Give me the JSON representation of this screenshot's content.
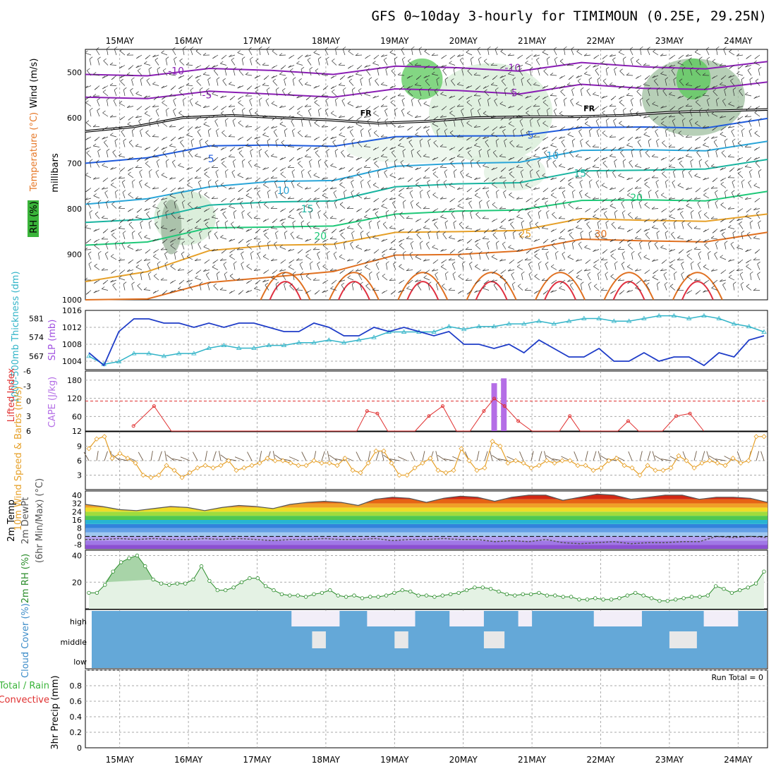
{
  "title": "GFS 0~10day 3-hourly for TIMIMOUN (0.25E, 29.25N)",
  "run_total_label": "Run Total = 0",
  "freezing_label": "FR",
  "chart_data": [
    {
      "type": "heatmap",
      "panel": "upper-air",
      "x": [
        "15MAY",
        "16MAY",
        "17MAY",
        "18MAY",
        "19MAY",
        "20MAY",
        "21MAY",
        "22MAY",
        "23MAY",
        "24MAY"
      ],
      "ylabel": "millibars",
      "ylim": [
        1000,
        450
      ],
      "yticks": [
        "500",
        "600",
        "700",
        "800",
        "900",
        "1000"
      ],
      "left_labels": [
        "Wind (m/s)",
        "Temperature (°C)",
        "RH (%)"
      ],
      "temperature_contours": [
        {
          "value": "-10",
          "color": "#8a1eb4",
          "pressure": [
            505,
            500,
            500,
            496,
            497,
            495,
            490,
            490,
            487,
            488,
            485,
            485
          ]
        },
        {
          "value": "-5",
          "color": "#8a1eb4",
          "pressure": [
            555,
            550,
            550,
            548,
            547,
            545,
            540,
            540,
            535,
            535,
            530,
            530
          ]
        },
        {
          "value": "5",
          "color": "#1e5adc",
          "pressure": [
            700,
            680,
            670,
            660,
            655,
            650,
            640,
            632,
            630,
            620,
            615,
            610
          ]
        },
        {
          "value": "10",
          "color": "#2aa5d8",
          "pressure": [
            790,
            770,
            760,
            740,
            730,
            715,
            700,
            690,
            680,
            670,
            665,
            660
          ]
        },
        {
          "value": "15",
          "color": "#19b4a0",
          "pressure": [
            830,
            815,
            800,
            785,
            775,
            760,
            745,
            735,
            725,
            715,
            705,
            700
          ]
        },
        {
          "value": "20",
          "color": "#1ec878",
          "pressure": [
            880,
            865,
            850,
            840,
            830,
            820,
            805,
            795,
            790,
            780,
            775,
            770
          ]
        },
        {
          "value": "25",
          "color": "#e6a028",
          "pressure": [
            960,
            930,
            900,
            880,
            870,
            860,
            850,
            840,
            830,
            825,
            820,
            820
          ]
        },
        {
          "value": "30",
          "color": "#e07020",
          "pressure": [
            1000,
            990,
            970,
            950,
            930,
            910,
            900,
            885,
            875,
            870,
            865,
            860
          ]
        }
      ],
      "contour_labels": [
        {
          "text": "-10",
          "x": 0.82,
          "p": 497
        },
        {
          "text": "-10",
          "x": 5.72,
          "p": 490
        },
        {
          "text": "-5",
          "x": 1.27,
          "p": 550
        },
        {
          "text": "-5",
          "x": 5.72,
          "p": 545
        },
        {
          "text": "5",
          "x": 1.33,
          "p": 690
        },
        {
          "text": "5",
          "x": 5.98,
          "p": 638
        },
        {
          "text": "10",
          "x": 2.38,
          "p": 760
        },
        {
          "text": "10",
          "x": 6.3,
          "p": 683
        },
        {
          "text": "15",
          "x": 2.73,
          "p": 800
        },
        {
          "text": "15",
          "x": 6.7,
          "p": 722
        },
        {
          "text": "20",
          "x": 2.92,
          "p": 860
        },
        {
          "text": "20",
          "x": 7.52,
          "p": 775
        },
        {
          "text": "25",
          "x": 5.9,
          "p": 855
        },
        {
          "text": "30",
          "x": 7.0,
          "p": 855
        }
      ],
      "freezing_level": [
        630,
        620,
        600,
        595,
        600,
        605,
        612,
        608,
        600,
        598,
        598,
        595,
        588,
        585,
        582
      ]
    },
    {
      "type": "line",
      "panel": "slp-thickness",
      "left_labels": [
        "SLP (mb)",
        "1000-500mb Thickness (dm)"
      ],
      "slp_ticks": [
        "1004",
        "1008",
        "1012",
        "1016"
      ],
      "thk_ticks": [
        "567",
        "574",
        "581"
      ],
      "series": [
        {
          "name": "SLP",
          "color": "#1e3cc8",
          "values": [
            1006,
            1003,
            1011,
            1014,
            1014,
            1013,
            1013,
            1012,
            1013,
            1012,
            1013,
            1013,
            1012,
            1011,
            1011,
            1013,
            1012,
            1010,
            1010,
            1012,
            1011,
            1012,
            1011,
            1010,
            1011,
            1008,
            1008,
            1007,
            1008,
            1006,
            1009,
            1007,
            1005,
            1005,
            1007,
            1004,
            1004,
            1006,
            1004,
            1005,
            1005,
            1003,
            1006,
            1005,
            1009,
            1010
          ]
        },
        {
          "name": "Thickness",
          "color": "#32b4c8",
          "values": [
            567,
            564,
            565,
            568,
            568,
            567,
            568,
            568,
            570,
            571,
            570,
            570,
            571,
            571,
            572,
            572,
            573,
            572,
            573,
            574,
            576,
            576,
            576,
            576,
            578,
            577,
            578,
            578,
            579,
            579,
            580,
            579,
            580,
            581,
            581,
            580,
            580,
            581,
            582,
            582,
            581,
            582,
            581,
            579,
            578,
            576
          ]
        }
      ]
    },
    {
      "type": "bar",
      "panel": "cape-li",
      "left_labels": [
        "CAPE (J/kg)",
        "Lifted Index"
      ],
      "cape_ticks": [
        "12",
        "60",
        "120",
        "180"
      ],
      "li_ticks": [
        "6",
        "3",
        "0",
        "-3",
        "-6"
      ],
      "cape_bars": [
        {
          "x": 5.45,
          "value": 170
        },
        {
          "x": 5.59,
          "value": 186
        }
      ],
      "lifted_index": [
        5,
        -2,
        5,
        6,
        6,
        6,
        6,
        6,
        6,
        6,
        6,
        6,
        6,
        6,
        6,
        6,
        6,
        6,
        6,
        6,
        6,
        6,
        6,
        6,
        6,
        6,
        6,
        6,
        6,
        6,
        6,
        6,
        6,
        6,
        6,
        6,
        6,
        6,
        6,
        6,
        6,
        6,
        6,
        6,
        6,
        6,
        6,
        6,
        6,
        6,
        6,
        6,
        6,
        6,
        6,
        6,
        6,
        6,
        6,
        6,
        6,
        6,
        6,
        6,
        6,
        6,
        6,
        6,
        6,
        6,
        6,
        6,
        6,
        6,
        6,
        6,
        6,
        6,
        6
      ],
      "li_line": [
        [
          0.2,
          5
        ],
        [
          0.5,
          1
        ],
        [
          0.75,
          6
        ],
        [
          3.45,
          6
        ],
        [
          3.6,
          2
        ],
        [
          3.75,
          2.5
        ],
        [
          3.9,
          6
        ],
        [
          4.3,
          6
        ],
        [
          4.5,
          3
        ],
        [
          4.7,
          1
        ],
        [
          4.9,
          6
        ],
        [
          5.1,
          6
        ],
        [
          5.3,
          2
        ],
        [
          5.45,
          -0.5
        ],
        [
          5.6,
          1
        ],
        [
          5.8,
          4
        ],
        [
          6.0,
          6
        ],
        [
          6.4,
          6
        ],
        [
          6.55,
          3
        ],
        [
          6.7,
          6
        ],
        [
          7.25,
          6
        ],
        [
          7.4,
          4
        ],
        [
          7.55,
          6
        ],
        [
          7.9,
          6
        ],
        [
          8.1,
          3
        ],
        [
          8.3,
          2.5
        ],
        [
          8.5,
          6
        ]
      ]
    },
    {
      "type": "line",
      "panel": "10m-wind",
      "left_labels": [
        "10m Wind Speed & Barbs (m/s)"
      ],
      "yticks": [
        "3",
        "6",
        "9"
      ],
      "ylim": [
        0,
        12
      ],
      "series": [
        {
          "name": "Speed",
          "color": "#e6a028",
          "values": [
            8.5,
            10.5,
            11,
            6.5,
            7.5,
            6.5,
            5.5,
            3,
            2.5,
            3,
            5,
            4,
            2.5,
            3.5,
            4.5,
            5,
            4.5,
            5,
            6,
            4,
            4.5,
            5,
            5.5,
            6.5,
            6,
            6,
            5.5,
            5,
            5,
            6,
            5.5,
            5.5,
            5,
            6.5,
            4,
            3.5,
            5.5,
            8,
            8,
            5.5,
            3,
            3,
            4.5,
            5.5,
            6.5,
            4,
            3.5,
            4,
            8.5,
            6,
            4,
            4.5,
            10,
            9,
            5.5,
            6,
            5.5,
            4.5,
            5,
            6,
            5.5,
            6,
            6,
            5,
            5,
            4,
            4.5,
            6,
            6.5,
            5,
            4.5,
            3,
            5,
            4,
            4,
            4.5,
            7,
            6,
            4.5,
            5.5,
            6,
            5.5,
            5,
            6.5,
            5.5,
            6,
            11,
            11
          ]
        }
      ]
    },
    {
      "type": "area",
      "panel": "2m-temp",
      "left_labels": [
        "2m Temp",
        "2m DewPt",
        "(6hr Min/Max) (°C)"
      ],
      "yticks": [
        "-8",
        "0",
        "8",
        "16",
        "24",
        "32",
        "40"
      ],
      "ylim": [
        -12,
        44
      ],
      "temperature": [
        31,
        29,
        26,
        25,
        27,
        29,
        28,
        25,
        28,
        30,
        29,
        27,
        31,
        33,
        34,
        33,
        30,
        36,
        38,
        37,
        33,
        37,
        39,
        38,
        34,
        38,
        40,
        40,
        35,
        38,
        41,
        40,
        36,
        38,
        40,
        40,
        36,
        38,
        38,
        37,
        33
      ],
      "dewpoint": [
        -3,
        -3,
        -2,
        -3,
        -2,
        -3,
        -3,
        -2,
        -3,
        -2,
        -3,
        -4,
        -3,
        -3,
        -2,
        -3,
        -3,
        -2,
        -4,
        -3,
        -3,
        -2,
        -3,
        -3,
        -5,
        -4,
        -5,
        -3,
        -6,
        -7,
        -6,
        -5,
        -7,
        -6,
        -6,
        -5,
        -5,
        0,
        -1,
        0,
        -1
      ]
    },
    {
      "type": "area",
      "panel": "2m-rh",
      "left_labels": [
        "2m RH (%)"
      ],
      "yticks": [
        "20",
        "40"
      ],
      "ylim": [
        0,
        44
      ],
      "values": [
        12,
        12,
        18,
        28,
        35,
        38,
        40,
        32,
        22,
        19,
        18,
        19,
        19,
        22,
        32,
        21,
        14,
        14,
        16,
        20,
        23,
        23,
        17,
        14,
        11,
        10,
        10,
        9,
        11,
        12,
        14,
        10,
        9,
        10,
        8,
        9,
        9,
        10,
        12,
        14,
        13,
        10,
        10,
        9,
        10,
        11,
        12,
        14,
        16,
        16,
        15,
        13,
        11,
        10,
        11,
        11,
        12,
        10,
        10,
        9,
        9,
        7,
        7,
        8,
        7,
        7,
        8,
        10,
        12,
        10,
        8,
        6,
        6,
        7,
        8,
        9,
        9,
        10,
        17,
        15,
        12,
        14,
        16,
        19,
        28
      ]
    },
    {
      "type": "heatmap",
      "panel": "cloud-cover",
      "left_labels": [
        "Cloud Cover (%)"
      ],
      "rows": [
        "high",
        "middle",
        "low"
      ]
    },
    {
      "type": "bar",
      "panel": "precip",
      "left_labels": [
        "Total / Rain",
        "Convective",
        "3hr Precip (mm)"
      ],
      "yticks": [
        "0",
        "0.2",
        "0.4",
        "0.6",
        "0.8"
      ],
      "ylim": [
        0,
        1
      ],
      "values": []
    }
  ]
}
